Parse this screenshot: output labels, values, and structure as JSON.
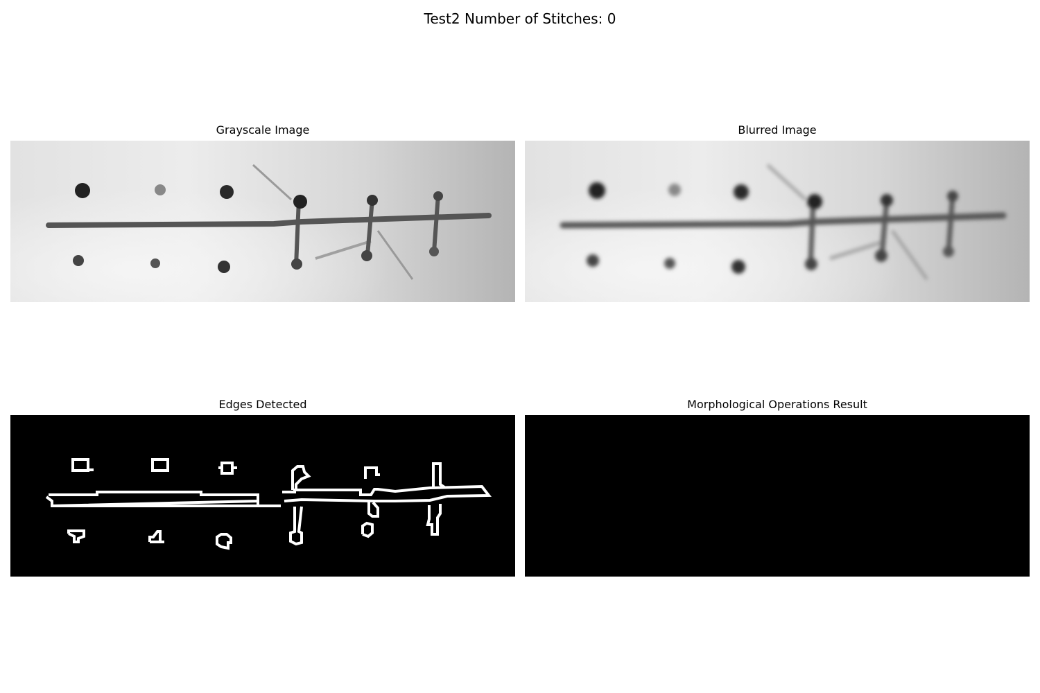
{
  "figure": {
    "title": "Test2 Number of Stitches: 0"
  },
  "panels": [
    {
      "title": "Grayscale Image"
    },
    {
      "title": "Blurred Image"
    },
    {
      "title": "Edges Detected"
    },
    {
      "title": "Morphological Operations Result"
    }
  ]
}
